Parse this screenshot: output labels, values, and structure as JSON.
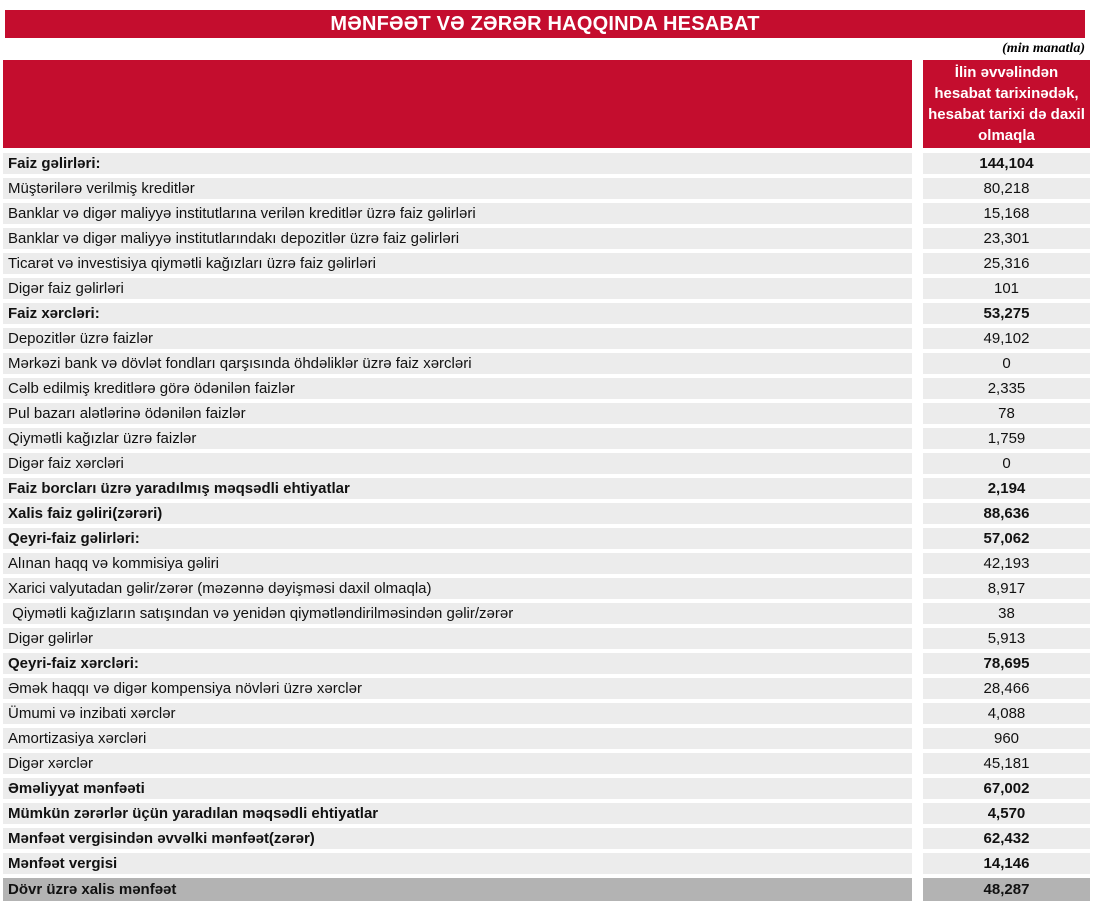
{
  "title": "MƏNFƏƏT VƏ ZƏRƏR HAQQINDA HESABAT",
  "unit_note": "(min manatla)",
  "colors": {
    "accent_red": "#C40D2E",
    "row_gray": "#ECECEC",
    "total_gray": "#B3B3B3",
    "header_text": "#FFFFFF"
  },
  "table": {
    "value_column_header": "İlin əvvəlindən\nhesabat tarixinədək,\nhesabat tarixi də daxil\nolmaqla",
    "rows": [
      {
        "label": "Faiz gəlirləri:",
        "value": "144,104",
        "style": "bold"
      },
      {
        "label": "Müştərilərə verilmiş kreditlər",
        "value": "80,218",
        "style": "normal"
      },
      {
        "label": "Banklar və digər maliyyə institutlarına verilən kreditlər üzrə faiz gəlirləri",
        "value": "15,168",
        "style": "normal"
      },
      {
        "label": "Banklar və digər maliyyə institutlarındakı depozitlər üzrə faiz gəlirləri",
        "value": "23,301",
        "style": "normal"
      },
      {
        "label": "Ticarət və investisiya qiymətli kağızları üzrə faiz gəlirləri",
        "value": "25,316",
        "style": "normal"
      },
      {
        "label": "Digər faiz gəlirləri",
        "value": "101",
        "style": "normal"
      },
      {
        "label": "Faiz xərcləri:",
        "value": "53,275",
        "style": "bold"
      },
      {
        "label": "Depozitlər üzrə faizlər",
        "value": "49,102",
        "style": "normal"
      },
      {
        "label": "Mərkəzi bank və dövlət fondları qarşısında öhdəliklər üzrə faiz xərcləri",
        "value": "0",
        "style": "normal"
      },
      {
        "label": "Cəlb edilmiş kreditlərə görə ödənilən faizlər",
        "value": "2,335",
        "style": "normal"
      },
      {
        "label": "Pul bazarı alətlərinə ödənilən faizlər",
        "value": "78",
        "style": "normal"
      },
      {
        "label": "Qiymətli kağızlar üzrə faizlər",
        "value": "1,759",
        "style": "normal"
      },
      {
        "label": "Digər faiz xərcləri",
        "value": "0",
        "style": "normal"
      },
      {
        "label": "Faiz borcları üzrə yaradılmış məqsədli ehtiyatlar",
        "value": "2,194",
        "style": "bold"
      },
      {
        "label": "Xalis faiz gəliri(zərəri)",
        "value": "88,636",
        "style": "bold"
      },
      {
        "label": "Qeyri-faiz gəlirləri:",
        "value": "57,062",
        "style": "bold"
      },
      {
        "label": "Alınan haqq və kommisiya gəliri",
        "value": "42,193",
        "style": "normal"
      },
      {
        "label": "Xarici valyutadan gəlir/zərər (məzənnə dəyişməsi daxil olmaqla)",
        "value": "8,917",
        "style": "normal"
      },
      {
        "label": " Qiymətli kağızların satışından və yenidən qiymətləndirilməsindən gəlir/zərər",
        "value": "38",
        "style": "normal"
      },
      {
        "label": "Digər gəlirlər",
        "value": "5,913",
        "style": "normal"
      },
      {
        "label": "Qeyri-faiz xərcləri:",
        "value": "78,695",
        "style": "bold"
      },
      {
        "label": "Əmək haqqı və digər kompensiya növləri üzrə xərclər",
        "value": "28,466",
        "style": "normal"
      },
      {
        "label": "Ümumi və inzibati xərclər",
        "value": "4,088",
        "style": "normal"
      },
      {
        "label": "Amortizasiya xərcləri",
        "value": "960",
        "style": "normal"
      },
      {
        "label": "Digər xərclər",
        "value": "45,181",
        "style": "normal"
      },
      {
        "label": "Əməliyyat mənfəəti",
        "value": "67,002",
        "style": "bold"
      },
      {
        "label": "Mümkün zərərlər üçün yaradılan məqsədli ehtiyatlar",
        "value": "4,570",
        "style": "bold"
      },
      {
        "label": "Mənfəət vergisindən əvvəlki mənfəət(zərər)",
        "value": "62,432",
        "style": "bold"
      },
      {
        "label": "Mənfəət vergisi",
        "value": "14,146",
        "style": "bold"
      },
      {
        "label": "Dövr üzrə xalis mənfəət",
        "value": "48,287",
        "style": "total"
      }
    ]
  }
}
